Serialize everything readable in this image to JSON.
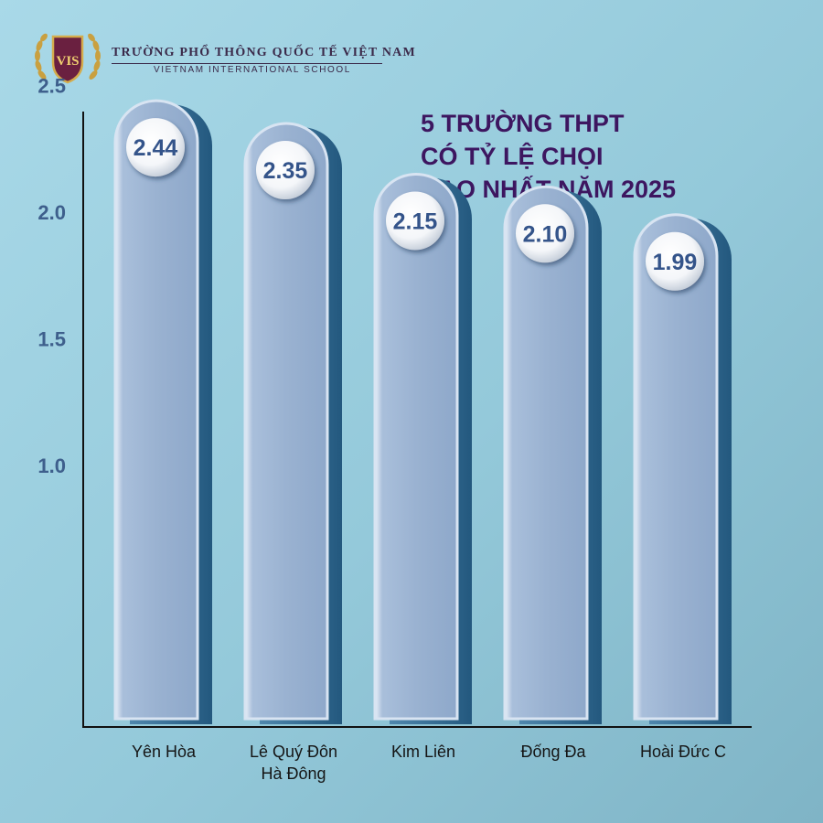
{
  "header": {
    "school_name": "TRƯỜNG PHỔ THÔNG QUỐC TẾ VIỆT NAM",
    "school_subtitle": "VIETNAM INTERNATIONAL SCHOOL",
    "logo_text": "VIS"
  },
  "colors": {
    "background": "#9ccfe0",
    "bar_fill": "#9ab2d1",
    "bar_shadow": "#2f6f98",
    "title": "#3d1660",
    "axis_labels": "#3e5f8c",
    "value_labels": "#34548a"
  },
  "chart_data": {
    "type": "bar",
    "title_lines": [
      "5 TRƯỜNG THPT",
      "CÓ TỶ LỆ CHỌI",
      "CAO NHẤT NĂM 2025"
    ],
    "categories": [
      [
        "Yên Hòa"
      ],
      [
        "Lê Quý Đôn",
        "Hà Đông"
      ],
      [
        "Kim Liên"
      ],
      [
        "Đống Đa"
      ],
      [
        "Hoài Đức C"
      ]
    ],
    "values": [
      2.44,
      2.35,
      2.15,
      2.1,
      1.99
    ],
    "value_labels": [
      "2.44",
      "2.35",
      "2.15",
      "2.10",
      "1.99"
    ],
    "y_ticks": [
      "1.0",
      "1.5",
      "2.0",
      "2.5"
    ],
    "ylim": [
      0,
      2.5
    ],
    "grid": false,
    "legend": false
  }
}
